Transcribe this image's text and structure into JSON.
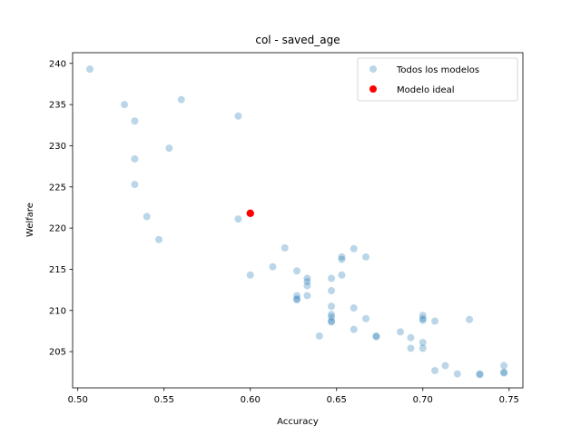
{
  "chart_data": {
    "type": "scatter",
    "title": "col - saved_age",
    "xlabel": "Accuracy",
    "ylabel": "Welfare",
    "xlim": [
      0.497,
      0.758
    ],
    "ylim": [
      200.6,
      241.3
    ],
    "xticks": [
      0.5,
      0.55,
      0.6,
      0.65,
      0.7,
      0.75
    ],
    "xtick_labels": [
      "0.50",
      "0.55",
      "0.60",
      "0.65",
      "0.70",
      "0.75"
    ],
    "yticks": [
      205,
      210,
      215,
      220,
      225,
      230,
      235,
      240
    ],
    "ytick_labels": [
      "205",
      "210",
      "215",
      "220",
      "225",
      "230",
      "235",
      "240"
    ],
    "grid": false,
    "legend_position": "top-right",
    "series": [
      {
        "name": "Todos los modelos",
        "color": "#1f77b4",
        "alpha": 0.3,
        "points": [
          [
            0.507,
            239.3
          ],
          [
            0.527,
            235.0
          ],
          [
            0.56,
            235.6
          ],
          [
            0.533,
            233.0
          ],
          [
            0.593,
            233.6
          ],
          [
            0.553,
            229.7
          ],
          [
            0.533,
            228.4
          ],
          [
            0.533,
            225.3
          ],
          [
            0.54,
            221.4
          ],
          [
            0.593,
            221.1
          ],
          [
            0.547,
            218.6
          ],
          [
            0.62,
            217.6
          ],
          [
            0.66,
            217.5
          ],
          [
            0.653,
            216.5
          ],
          [
            0.653,
            216.2
          ],
          [
            0.667,
            216.5
          ],
          [
            0.613,
            215.3
          ],
          [
            0.627,
            214.8
          ],
          [
            0.6,
            214.3
          ],
          [
            0.653,
            214.3
          ],
          [
            0.633,
            213.9
          ],
          [
            0.647,
            213.9
          ],
          [
            0.633,
            213.5
          ],
          [
            0.633,
            213.0
          ],
          [
            0.647,
            212.4
          ],
          [
            0.627,
            211.8
          ],
          [
            0.633,
            211.8
          ],
          [
            0.627,
            211.3
          ],
          [
            0.627,
            211.4
          ],
          [
            0.647,
            210.5
          ],
          [
            0.66,
            210.3
          ],
          [
            0.647,
            209.5
          ],
          [
            0.647,
            209.2
          ],
          [
            0.667,
            209.0
          ],
          [
            0.647,
            208.7
          ],
          [
            0.647,
            208.6
          ],
          [
            0.7,
            209.4
          ],
          [
            0.7,
            209.0
          ],
          [
            0.7,
            208.8
          ],
          [
            0.707,
            208.7
          ],
          [
            0.727,
            208.9
          ],
          [
            0.66,
            207.7
          ],
          [
            0.687,
            207.4
          ],
          [
            0.64,
            206.9
          ],
          [
            0.673,
            206.9
          ],
          [
            0.673,
            206.8
          ],
          [
            0.693,
            206.7
          ],
          [
            0.7,
            206.1
          ],
          [
            0.693,
            205.4
          ],
          [
            0.7,
            205.4
          ],
          [
            0.747,
            203.3
          ],
          [
            0.713,
            203.3
          ],
          [
            0.707,
            202.7
          ],
          [
            0.72,
            202.3
          ],
          [
            0.733,
            202.3
          ],
          [
            0.733,
            202.2
          ],
          [
            0.747,
            202.5
          ],
          [
            0.747,
            202.4
          ]
        ]
      },
      {
        "name": "Modelo ideal",
        "color": "#ff0000",
        "alpha": 1,
        "points": [
          [
            0.6,
            221.8
          ]
        ]
      }
    ]
  }
}
